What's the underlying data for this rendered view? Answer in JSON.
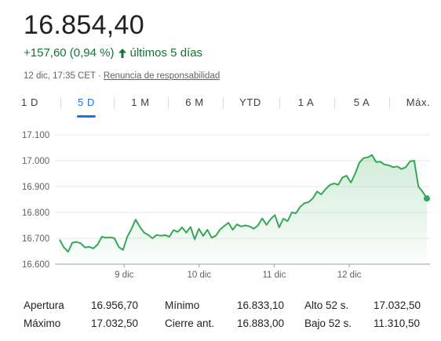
{
  "quote": {
    "price": "16.854,40",
    "change": "+157,60 (0,94 %)",
    "period": "últimos 5 días",
    "timestamp": "12 dic, 17:35 CET",
    "separator": "·",
    "disclaimer": "Renuncia de responsabilidad"
  },
  "tabs": [
    {
      "label": "1 D",
      "active": false
    },
    {
      "label": "5 D",
      "active": true
    },
    {
      "label": "1 M",
      "active": false
    },
    {
      "label": "6 M",
      "active": false
    },
    {
      "label": "YTD",
      "active": false
    },
    {
      "label": "1 A",
      "active": false
    },
    {
      "label": "5 A",
      "active": false
    },
    {
      "label": "Máx.",
      "active": false
    }
  ],
  "colors": {
    "line": "#34a853",
    "positive_text": "#137333",
    "accent": "#1a73e8"
  },
  "chart_data": {
    "type": "area",
    "ylim": [
      16600,
      17100
    ],
    "y_ticks": [
      16600,
      16700,
      16800,
      16900,
      17000,
      17100
    ],
    "y_tick_labels": [
      "16.600",
      "16.700",
      "16.800",
      "16.900",
      "17.000",
      "17.100"
    ],
    "x_ticks": [
      {
        "label": "9 dic",
        "at": 12
      },
      {
        "label": "10 dic",
        "at": 25
      },
      {
        "label": "11 dic",
        "at": 38
      },
      {
        "label": "12 dic",
        "at": 51
      }
    ],
    "x_range": [
      0,
      65
    ],
    "series": [
      {
        "values": [
          16695,
          16665,
          16648,
          16683,
          16686,
          16681,
          16665,
          16667,
          16661,
          16676,
          16706,
          16702,
          16704,
          16700,
          16667,
          16655,
          16705,
          16735,
          16772,
          16745,
          16722,
          16713,
          16700,
          16713,
          16710,
          16712,
          16706,
          16732,
          16725,
          16742,
          16722,
          16744,
          16696,
          16737,
          16709,
          16733,
          16702,
          16710,
          16734,
          16748,
          16760,
          16733,
          16754,
          16746,
          16750,
          16746,
          16737,
          16750,
          16777,
          16752,
          16775,
          16790,
          16742,
          16776,
          16766,
          16800,
          16797,
          16822,
          16836,
          16840,
          16855,
          16881,
          16870,
          16890,
          16906,
          16912,
          16907,
          16935,
          16942,
          16915,
          16950,
          16992,
          17010,
          17013,
          17022,
          16995,
          16996,
          16985,
          16982,
          16975,
          16978,
          16968,
          16975,
          16998,
          17000,
          16900,
          16880,
          16854
        ]
      }
    ]
  },
  "stats": {
    "rows": [
      [
        {
          "label": "Apertura",
          "value": "16.956,70"
        },
        {
          "label": "Mínimo",
          "value": "16.833,10"
        },
        {
          "label": "Alto 52 s.",
          "value": "17.032,50"
        }
      ],
      [
        {
          "label": "Máximo",
          "value": "17.032,50"
        },
        {
          "label": "Cierre ant.",
          "value": "16.883,00"
        },
        {
          "label": "Bajo 52 s.",
          "value": "11.310,50"
        }
      ]
    ]
  }
}
